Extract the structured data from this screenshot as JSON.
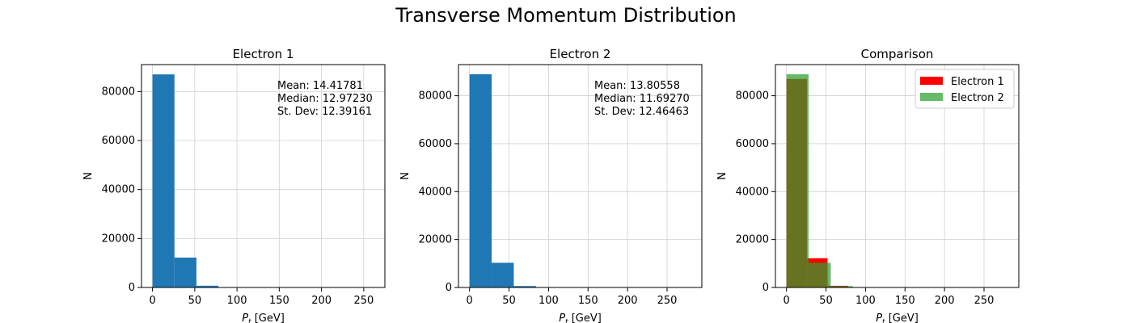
{
  "suptitle": "Transverse Momentum Distribution",
  "colors": {
    "histogram": "#1f77b4",
    "electron1": "#ff0000",
    "electron2": "#2ca02c",
    "overlap": "#654a00",
    "grid": "#d0d0d0"
  },
  "chart_data": [
    {
      "type": "bar",
      "title": "Electron 1",
      "xlabel_base": "P",
      "xlabel_sub": "t",
      "xlabel_unit": " [GeV]",
      "ylabel": "N",
      "xlim": [
        -13,
        275
      ],
      "ylim": [
        0,
        91000
      ],
      "xticks": [
        0,
        50,
        100,
        150,
        200,
        250
      ],
      "yticks": [
        0,
        20000,
        40000,
        60000,
        80000
      ],
      "grid": true,
      "bin_edges": [
        0,
        26,
        52,
        78,
        104,
        130,
        156,
        182,
        208,
        234,
        261
      ],
      "values": [
        87000,
        12200,
        700,
        60,
        10,
        4,
        2,
        1,
        1,
        1
      ],
      "stats": [
        "Mean: 14.41781",
        "Median: 12.97230",
        "St. Dev: 12.39161"
      ]
    },
    {
      "type": "bar",
      "title": "Electron 2",
      "xlabel_base": "P",
      "xlabel_sub": "t",
      "xlabel_unit": " [GeV]",
      "ylabel": "N",
      "xlim": [
        -14,
        294
      ],
      "ylim": [
        0,
        93000
      ],
      "xticks": [
        0,
        50,
        100,
        150,
        200,
        250
      ],
      "yticks": [
        0,
        20000,
        40000,
        60000,
        80000
      ],
      "grid": true,
      "bin_edges": [
        0,
        28,
        56,
        84,
        112,
        140,
        168,
        196,
        224,
        252,
        280
      ],
      "values": [
        89000,
        10300,
        600,
        50,
        8,
        3,
        2,
        1,
        1,
        1
      ],
      "stats": [
        "Mean: 13.80558",
        "Median: 11.69270",
        "St. Dev: 12.46463"
      ]
    },
    {
      "type": "bar",
      "title": "Comparison",
      "xlabel_base": "P",
      "xlabel_sub": "t",
      "xlabel_unit": " [GeV]",
      "ylabel": "N",
      "xlim": [
        -14,
        294
      ],
      "ylim": [
        0,
        93000
      ],
      "xticks": [
        0,
        50,
        100,
        150,
        200,
        250
      ],
      "yticks": [
        0,
        20000,
        40000,
        60000,
        80000
      ],
      "grid": true,
      "legend_position": "top-right",
      "series": [
        {
          "name": "Electron 1",
          "bin_edges": [
            0,
            26,
            52,
            78,
            104,
            130,
            156,
            182,
            208,
            234,
            261
          ],
          "values": [
            87000,
            12200,
            700,
            60,
            10,
            4,
            2,
            1,
            1,
            1
          ]
        },
        {
          "name": "Electron 2",
          "bin_edges": [
            0,
            28,
            56,
            84,
            112,
            140,
            168,
            196,
            224,
            252,
            280
          ],
          "values": [
            89000,
            10300,
            600,
            50,
            8,
            3,
            2,
            1,
            1,
            1
          ]
        }
      ]
    }
  ]
}
